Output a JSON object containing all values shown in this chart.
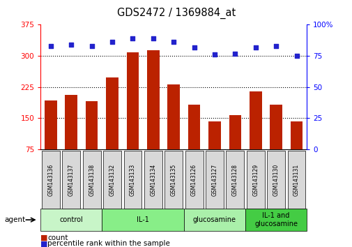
{
  "title": "GDS2472 / 1369884_at",
  "samples": [
    "GSM143136",
    "GSM143137",
    "GSM143138",
    "GSM143132",
    "GSM143133",
    "GSM143134",
    "GSM143135",
    "GSM143126",
    "GSM143127",
    "GSM143128",
    "GSM143129",
    "GSM143130",
    "GSM143131"
  ],
  "counts": [
    193,
    207,
    191,
    248,
    308,
    314,
    232,
    182,
    142,
    157,
    215,
    182,
    142
  ],
  "percentiles": [
    83,
    84,
    83,
    86,
    89,
    89,
    86,
    82,
    76,
    77,
    82,
    83,
    75
  ],
  "groups": [
    {
      "label": "control",
      "start": 0,
      "end": 3,
      "color": "#c8f5c8"
    },
    {
      "label": "IL-1",
      "start": 3,
      "end": 7,
      "color": "#88ee88"
    },
    {
      "label": "glucosamine",
      "start": 7,
      "end": 10,
      "color": "#aaf0aa"
    },
    {
      "label": "IL-1 and\nglucosamine",
      "start": 10,
      "end": 13,
      "color": "#44cc44"
    }
  ],
  "ylim_left": [
    75,
    375
  ],
  "yticks_left": [
    75,
    150,
    225,
    300,
    375
  ],
  "ylim_right": [
    0,
    100
  ],
  "yticks_right": [
    0,
    25,
    50,
    75,
    100
  ],
  "hlines": [
    150,
    225,
    300
  ],
  "bar_color": "#bb2200",
  "dot_color": "#2222cc",
  "legend_count_label": "count",
  "legend_pct_label": "percentile rank within the sample"
}
